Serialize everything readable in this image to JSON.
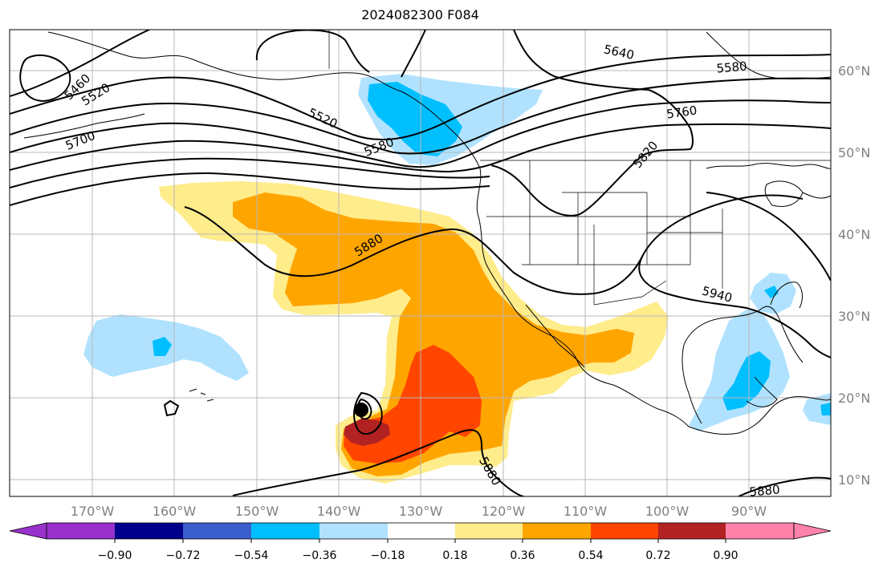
{
  "title": "2024082300 F084",
  "lon_labels": [
    "170°W",
    "160°W",
    "150°W",
    "140°W",
    "130°W",
    "120°W",
    "110°W",
    "100°W",
    "90°W"
  ],
  "lat_labels": [
    "60°N",
    "50°N",
    "40°N",
    "30°N",
    "20°N",
    "10°N"
  ],
  "contour_labels": [
    "5460",
    "5520",
    "5700",
    "5520",
    "5580",
    "5640",
    "5580",
    "5760",
    "5820",
    "5880",
    "5940",
    "5880",
    "5880"
  ],
  "colorbar": {
    "ticks": [
      "−0.90",
      "−0.72",
      "−0.54",
      "−0.36",
      "−0.18",
      "0.18",
      "0.36",
      "0.54",
      "0.72",
      "0.90"
    ],
    "colors": [
      "#9932cc",
      "#00008b",
      "#3a5fcd",
      "#00bfff",
      "#b0e2ff",
      "#ffffff",
      "#ffec8b",
      "#ffa500",
      "#ff4500",
      "#b22222",
      "#ff82ab"
    ]
  },
  "legend_shading": {
    "light_blue": "#b0e2ff",
    "blue": "#00bfff",
    "yellow": "#ffec8b",
    "orange": "#ffa500",
    "red_orange": "#ff4500",
    "dark_red": "#b22222"
  }
}
